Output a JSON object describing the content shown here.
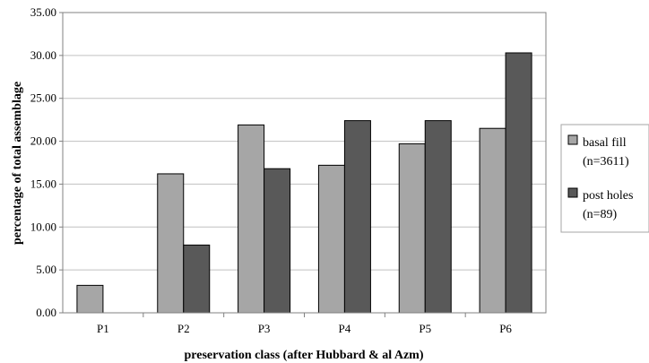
{
  "chart_data": {
    "type": "bar",
    "title": "",
    "xlabel": "preservation class (after Hubbard & al Azm)",
    "ylabel": "percentage of total assemblage",
    "categories": [
      "P1",
      "P2",
      "P3",
      "P4",
      "P5",
      "P6"
    ],
    "ylim": [
      0,
      35
    ],
    "yticks": [
      "0.00",
      "5.00",
      "10.00",
      "15.00",
      "20.00",
      "25.00",
      "30.00",
      "35.00"
    ],
    "grid": true,
    "legend_position": "right",
    "series": [
      {
        "name": "basal fill (n=3611)",
        "legend_lines": [
          "basal fill",
          "(n=3611)"
        ],
        "color": "#a6a6a6",
        "values": [
          3.2,
          16.2,
          21.9,
          17.2,
          19.7,
          21.5
        ]
      },
      {
        "name": "post holes (n=89)",
        "legend_lines": [
          "post holes",
          "(n=89)"
        ],
        "color": "#595959",
        "values": [
          0,
          7.9,
          16.8,
          22.4,
          22.4,
          30.3
        ]
      }
    ]
  }
}
